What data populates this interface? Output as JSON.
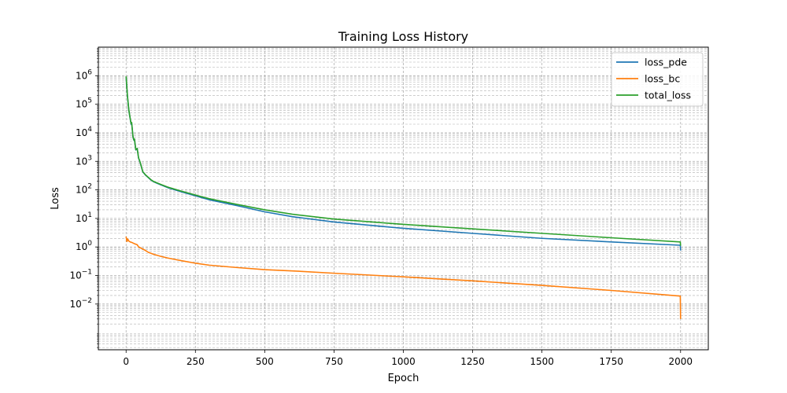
{
  "chart_data": {
    "type": "line",
    "title": "Training Loss History",
    "xlabel": "Epoch",
    "ylabel": "Loss",
    "xlim": [
      -100,
      2100
    ],
    "ylim": [
      0.00025,
      10000000
    ],
    "yscale": "log",
    "grid": true,
    "grid_style": "dashed",
    "legend_position": "top-right",
    "x_ticks": [
      0,
      250,
      500,
      750,
      1000,
      1250,
      1500,
      1750,
      2000
    ],
    "x_tick_labels": [
      "0",
      "250",
      "500",
      "750",
      "1000",
      "1250",
      "1500",
      "1750",
      "2000"
    ],
    "y_ticks": [
      0.01,
      0.1,
      1,
      10,
      100,
      1000,
      10000,
      100000,
      1000000
    ],
    "y_tick_labels": [
      {
        "base": "10",
        "exp": "−2"
      },
      {
        "base": "10",
        "exp": "−1"
      },
      {
        "base": "10",
        "exp": "0"
      },
      {
        "base": "10",
        "exp": "1"
      },
      {
        "base": "10",
        "exp": "2"
      },
      {
        "base": "10",
        "exp": "3"
      },
      {
        "base": "10",
        "exp": "4"
      },
      {
        "base": "10",
        "exp": "5"
      },
      {
        "base": "10",
        "exp": "6"
      }
    ],
    "series": [
      {
        "name": "loss_pde",
        "color": "#1f77b4",
        "x": [
          0,
          5,
          10,
          15,
          18,
          20,
          25,
          28,
          30,
          35,
          40,
          45,
          50,
          55,
          60,
          70,
          80,
          90,
          100,
          125,
          150,
          200,
          250,
          300,
          400,
          500,
          600,
          750,
          1000,
          1250,
          1500,
          1750,
          1999,
          2000
        ],
        "y": [
          900000,
          180000,
          60000,
          30000,
          20000,
          22000,
          7000,
          5500,
          6000,
          2500,
          2800,
          1300,
          950,
          650,
          430,
          330,
          270,
          220,
          190,
          150,
          120,
          85,
          62,
          45,
          28,
          17,
          11.5,
          7.5,
          4.5,
          3.0,
          2.0,
          1.5,
          1.15,
          0.75
        ]
      },
      {
        "name": "loss_bc",
        "color": "#ff7f0e",
        "x": [
          0,
          3,
          6,
          10,
          15,
          20,
          30,
          40,
          45,
          50,
          60,
          70,
          80,
          100,
          125,
          150,
          200,
          250,
          300,
          400,
          500,
          600,
          750,
          1000,
          1250,
          1500,
          1750,
          1999,
          2000
        ],
        "y": [
          2.3,
          1.55,
          1.9,
          1.6,
          1.5,
          1.45,
          1.3,
          1.2,
          1.0,
          0.95,
          0.85,
          0.75,
          0.65,
          0.55,
          0.47,
          0.41,
          0.33,
          0.27,
          0.23,
          0.19,
          0.16,
          0.145,
          0.12,
          0.09,
          0.065,
          0.045,
          0.03,
          0.019,
          0.003
        ]
      },
      {
        "name": "total_loss",
        "color": "#2ca02c",
        "x": [
          0,
          5,
          10,
          15,
          18,
          20,
          25,
          28,
          30,
          35,
          40,
          45,
          50,
          55,
          60,
          70,
          80,
          90,
          100,
          125,
          150,
          200,
          250,
          300,
          400,
          500,
          600,
          750,
          1000,
          1250,
          1500,
          1750,
          1999,
          2000
        ],
        "y": [
          950000,
          190000,
          62000,
          31000,
          21000,
          23000,
          7200,
          5600,
          6100,
          2550,
          2850,
          1320,
          970,
          660,
          440,
          335,
          275,
          225,
          195,
          155,
          125,
          90,
          66,
          49,
          31,
          20,
          14,
          9.5,
          6.2,
          4.3,
          3.0,
          2.1,
          1.5,
          1.1
        ]
      }
    ]
  }
}
